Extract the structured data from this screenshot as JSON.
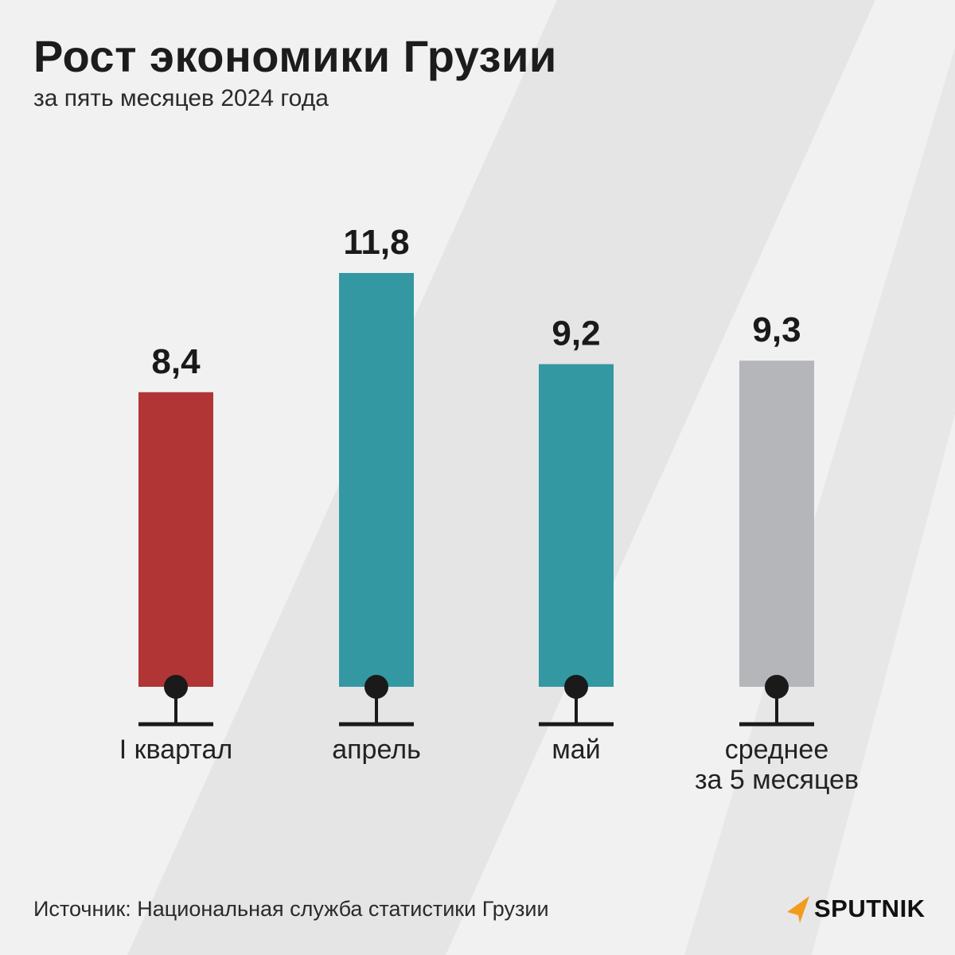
{
  "header": {
    "title": "Рост экономики Грузии",
    "subtitle": "за пять месяцев 2024 года"
  },
  "chart_data": {
    "type": "bar",
    "title": "Рост экономики Грузии",
    "subtitle": "за пять месяцев 2024 года",
    "categories": [
      "I квартал",
      "апрель",
      "май",
      "среднее\nза 5 месяцев"
    ],
    "values": [
      8.4,
      11.8,
      9.2,
      9.3
    ],
    "value_labels": [
      "8,4",
      "11,8",
      "9,2",
      "9,3"
    ],
    "colors": [
      "#b23535",
      "#3398a2",
      "#3398a2",
      "#b5b6b9"
    ],
    "ylim": [
      0,
      11.8
    ],
    "xlabel": "",
    "ylabel": "",
    "grid": false,
    "legend": "none"
  },
  "footer": {
    "source": "Источник: Национальная служба статистики Грузии",
    "logo": "SPUTNIK"
  },
  "colors": {
    "background": "#f1f1f1",
    "stripe": "#e5e5e6",
    "stroke": "#1a1a1a",
    "logo_accent": "#f29c1f"
  }
}
